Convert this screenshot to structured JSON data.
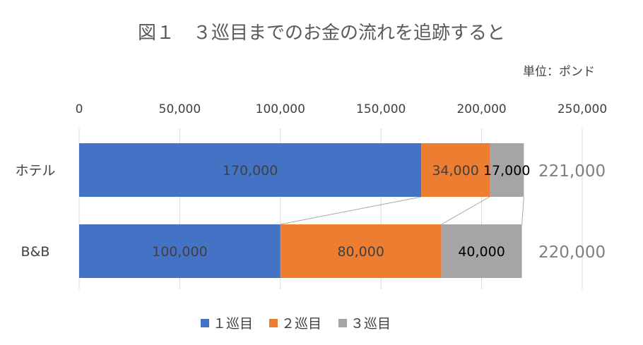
{
  "chart_data": {
    "type": "bar",
    "orientation": "horizontal",
    "stacked": true,
    "title": "図１　３巡目までのお金の流れを追跡すると",
    "unit_label": "単位：ポンド",
    "xlim": [
      0,
      250000
    ],
    "x_ticks": [
      "0",
      "50,000",
      "100,000",
      "150,000",
      "200,000",
      "250,000"
    ],
    "grid": true,
    "legend_position": "bottom",
    "categories": [
      "ホテル",
      "B&B"
    ],
    "series": [
      {
        "name": "１巡目",
        "color": "#4472C4",
        "label_color": "#404040",
        "values": [
          170000,
          100000
        ],
        "labels": [
          "170,000",
          "100,000"
        ]
      },
      {
        "name": "２巡目",
        "color": "#ED7D31",
        "label_color": "#404040",
        "values": [
          34000,
          80000
        ],
        "labels": [
          "34,000",
          "80,000"
        ]
      },
      {
        "name": "３巡目",
        "color": "#A5A5A5",
        "label_color": "#000000",
        "values": [
          17000,
          40000
        ],
        "labels": [
          "17,000",
          "40,000"
        ]
      }
    ],
    "totals": [
      "221,000",
      "220,000"
    ]
  }
}
